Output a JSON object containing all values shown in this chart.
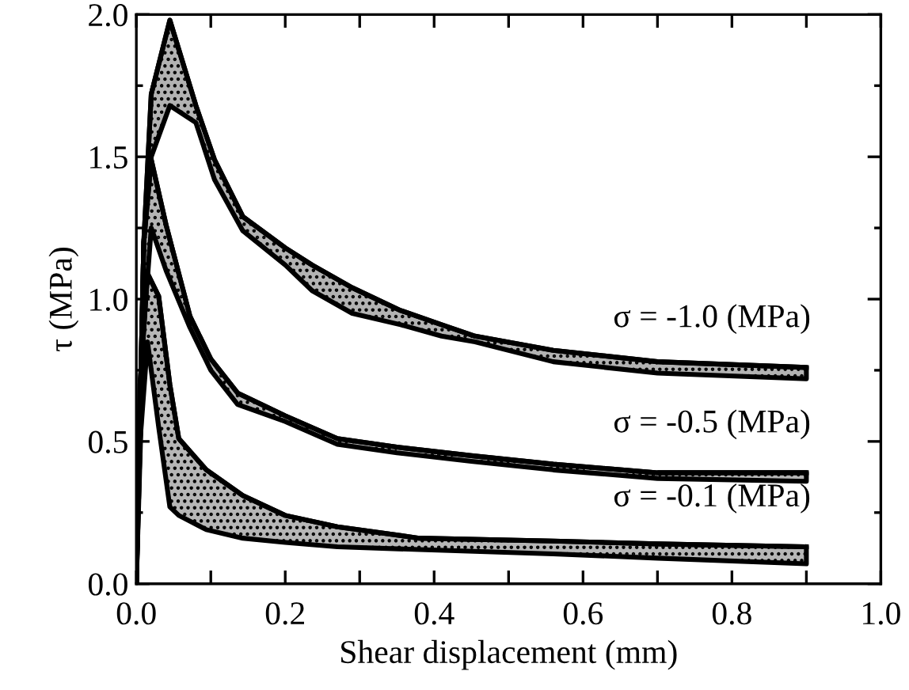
{
  "chart_data": {
    "type": "line",
    "xlabel": "Shear displacement (mm)",
    "ylabel": "τ (MPa)",
    "xlim": [
      0,
      1.0
    ],
    "ylim": [
      0,
      2.0
    ],
    "xticks": [
      {
        "value": 0,
        "label": "0.0"
      },
      {
        "value": 0.1,
        "label": null
      },
      {
        "value": 0.2,
        "label": "0.2"
      },
      {
        "value": 0.3,
        "label": null
      },
      {
        "value": 0.4,
        "label": "0.4"
      },
      {
        "value": 0.5,
        "label": null
      },
      {
        "value": 0.6,
        "label": "0.6"
      },
      {
        "value": 0.7,
        "label": null
      },
      {
        "value": 0.8,
        "label": "0.8"
      },
      {
        "value": 0.9,
        "label": null
      },
      {
        "value": 1.0,
        "label": "1.0"
      }
    ],
    "yticks": [
      {
        "value": 0,
        "label": "0.0"
      },
      {
        "value": 0.25,
        "label": null
      },
      {
        "value": 0.5,
        "label": "0.5"
      },
      {
        "value": 0.75,
        "label": null
      },
      {
        "value": 1.0,
        "label": "1.0"
      },
      {
        "value": 1.25,
        "label": null
      },
      {
        "value": 1.5,
        "label": "1.5"
      },
      {
        "value": 1.75,
        "label": null
      },
      {
        "value": 2.0,
        "label": "2.0"
      }
    ],
    "grid": false,
    "legend": "right",
    "series": [
      {
        "name": "σ = -1.0 (MPa)",
        "color": "#000000",
        "x": [
          0,
          0.01,
          0.02,
          0.045,
          0.08,
          0.105,
          0.143,
          0.2,
          0.236,
          0.29,
          0.355,
          0.41,
          0.455,
          0.56,
          0.7,
          0.9
        ],
        "values": [
          0,
          1.2,
          1.72,
          1.98,
          1.68,
          1.49,
          1.29,
          1.18,
          1.12,
          1.04,
          0.96,
          0.91,
          0.87,
          0.82,
          0.78,
          0.76
        ],
        "upper": [
          0,
          1.2,
          1.72,
          1.98,
          1.68,
          1.49,
          1.29,
          1.18,
          1.12,
          1.04,
          0.96,
          0.91,
          0.87,
          0.82,
          0.78,
          0.76
        ],
        "lower": [
          0,
          1.0,
          1.5,
          1.68,
          1.62,
          1.42,
          1.24,
          1.12,
          1.03,
          0.95,
          0.91,
          0.87,
          0.85,
          0.78,
          0.74,
          0.72
        ]
      },
      {
        "name": "σ = -0.5 (MPa)",
        "color": "#000000",
        "x": [
          0,
          0.01,
          0.02,
          0.04,
          0.072,
          0.1,
          0.136,
          0.2,
          0.27,
          0.35,
          0.45,
          0.56,
          0.7,
          0.9
        ],
        "values": [
          0,
          1.2,
          1.49,
          1.26,
          0.94,
          0.79,
          0.67,
          0.59,
          0.51,
          0.48,
          0.45,
          0.42,
          0.39,
          0.39
        ],
        "upper": [
          0,
          1.2,
          1.49,
          1.26,
          0.94,
          0.79,
          0.67,
          0.59,
          0.51,
          0.48,
          0.45,
          0.42,
          0.39,
          0.39
        ],
        "lower": [
          0,
          0.9,
          1.25,
          1.1,
          0.9,
          0.75,
          0.63,
          0.57,
          0.49,
          0.46,
          0.43,
          0.4,
          0.37,
          0.36
        ]
      },
      {
        "name": "σ = -0.1 (MPa)",
        "color": "#000000",
        "x": [
          0,
          0.005,
          0.015,
          0.03,
          0.045,
          0.057,
          0.094,
          0.143,
          0.2,
          0.27,
          0.38,
          0.56,
          0.7,
          0.9
        ],
        "values": [
          0,
          0.7,
          1.09,
          1.01,
          0.7,
          0.51,
          0.4,
          0.31,
          0.24,
          0.2,
          0.16,
          0.15,
          0.14,
          0.13
        ],
        "upper": [
          0,
          0.7,
          1.09,
          1.01,
          0.7,
          0.51,
          0.4,
          0.31,
          0.24,
          0.2,
          0.16,
          0.15,
          0.14,
          0.13
        ],
        "lower": [
          0,
          0.5,
          0.85,
          0.55,
          0.27,
          0.24,
          0.19,
          0.16,
          0.145,
          0.13,
          0.12,
          0.105,
          0.09,
          0.07
        ]
      }
    ]
  }
}
